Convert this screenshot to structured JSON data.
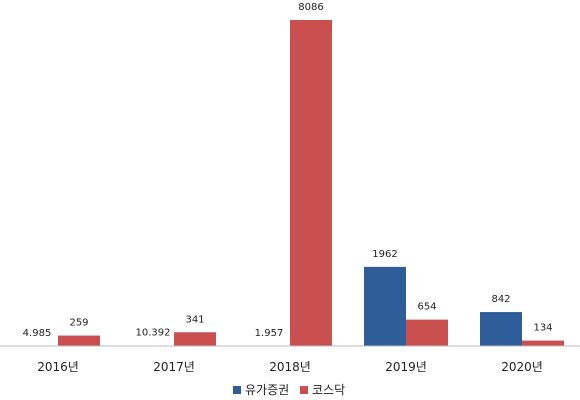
{
  "chart_data": {
    "type": "bar",
    "categories": [
      "2016년",
      "2017년",
      "2018년",
      "2019년",
      "2020년"
    ],
    "series": [
      {
        "name": "유가증권",
        "color": "#2e5d9a",
        "values": [
          4.985,
          10.392,
          1.957,
          1962,
          842
        ],
        "data_labels": [
          "4.985",
          "10.392",
          "1.957",
          "1962",
          "842"
        ]
      },
      {
        "name": "코스닥",
        "color": "#c9504f",
        "values": [
          259,
          341,
          8086,
          654,
          134
        ],
        "data_labels": [
          "259",
          "341",
          "8086",
          "654",
          "134"
        ]
      }
    ],
    "ylim": [
      0,
      8086
    ],
    "grid": false,
    "legend": "bottom"
  }
}
